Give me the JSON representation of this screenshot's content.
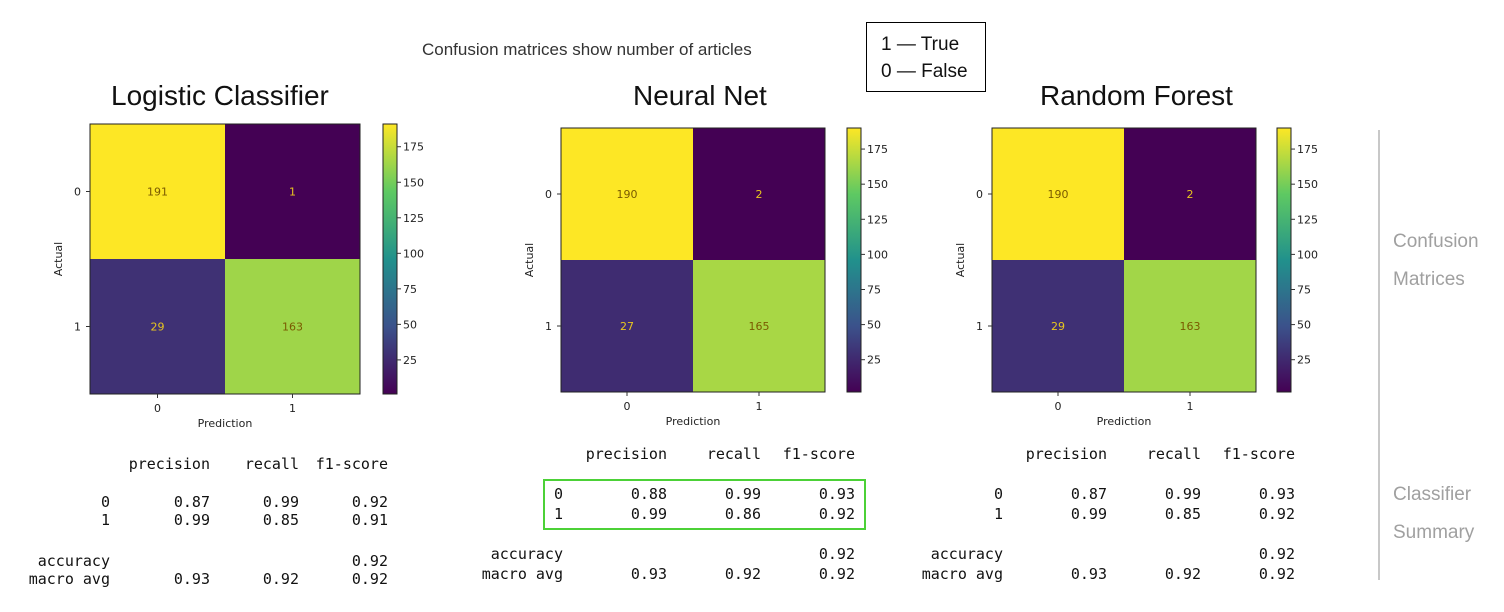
{
  "header": {
    "subtitle": "Confusion matrices show number of articles",
    "legend": [
      "1 — True",
      "0 — False"
    ]
  },
  "side_labels": {
    "matrices": "Confusion Matrices",
    "summary": "Classifier Summary"
  },
  "colors": {
    "viridis_low": "#440154",
    "viridis_high": "#fde725",
    "highlight": "#4cd137"
  },
  "chart_data": [
    {
      "type": "heatmap",
      "title": "Logistic Classifier",
      "xlabel": "Prediction",
      "ylabel": "Actual",
      "x_categories": [
        "0",
        "1"
      ],
      "y_categories": [
        "0",
        "1"
      ],
      "values": [
        [
          191,
          1
        ],
        [
          29,
          163
        ]
      ],
      "colorbar": {
        "ticks": [
          "175",
          "150",
          "125",
          "100",
          "75",
          "50",
          "25"
        ],
        "tick_values": [
          175,
          150,
          125,
          100,
          75,
          50,
          25
        ],
        "range": [
          1,
          191
        ]
      },
      "report": {
        "headers": [
          "precision",
          "recall",
          "f1-score"
        ],
        "rows": [
          {
            "label": "0",
            "values": [
              "0.87",
              "0.99",
              "0.92"
            ]
          },
          {
            "label": "1",
            "values": [
              "0.99",
              "0.85",
              "0.91"
            ]
          },
          {
            "label": "accuracy",
            "values": [
              "",
              "",
              "0.92"
            ]
          },
          {
            "label": "macro avg",
            "values": [
              "0.93",
              "0.92",
              "0.92"
            ]
          }
        ]
      }
    },
    {
      "type": "heatmap",
      "title": "Neural Net",
      "xlabel": "Prediction",
      "ylabel": "Actual",
      "x_categories": [
        "0",
        "1"
      ],
      "y_categories": [
        "0",
        "1"
      ],
      "values": [
        [
          190,
          2
        ],
        [
          27,
          165
        ]
      ],
      "colorbar": {
        "ticks": [
          "175",
          "150",
          "125",
          "100",
          "75",
          "50",
          "25"
        ],
        "tick_values": [
          175,
          150,
          125,
          100,
          75,
          50,
          25
        ],
        "range": [
          2,
          190
        ]
      },
      "report": {
        "headers": [
          "precision",
          "recall",
          "f1-score"
        ],
        "rows": [
          {
            "label": "0",
            "values": [
              "0.88",
              "0.99",
              "0.93"
            ]
          },
          {
            "label": "1",
            "values": [
              "0.99",
              "0.86",
              "0.92"
            ]
          },
          {
            "label": "accuracy",
            "values": [
              "",
              "",
              "0.92"
            ]
          },
          {
            "label": "macro avg",
            "values": [
              "0.93",
              "0.92",
              "0.92"
            ]
          }
        ],
        "highlighted": true
      }
    },
    {
      "type": "heatmap",
      "title": "Random Forest",
      "xlabel": "Prediction",
      "ylabel": "Actual",
      "x_categories": [
        "0",
        "1"
      ],
      "y_categories": [
        "0",
        "1"
      ],
      "values": [
        [
          190,
          2
        ],
        [
          29,
          163
        ]
      ],
      "colorbar": {
        "ticks": [
          "175",
          "150",
          "125",
          "100",
          "75",
          "50",
          "25"
        ],
        "tick_values": [
          175,
          150,
          125,
          100,
          75,
          50,
          25
        ],
        "range": [
          2,
          190
        ]
      },
      "report": {
        "headers": [
          "precision",
          "recall",
          "f1-score"
        ],
        "rows": [
          {
            "label": "0",
            "values": [
              "0.87",
              "0.99",
              "0.93"
            ]
          },
          {
            "label": "1",
            "values": [
              "0.99",
              "0.85",
              "0.92"
            ]
          },
          {
            "label": "accuracy",
            "values": [
              "",
              "",
              "0.92"
            ]
          },
          {
            "label": "macro avg",
            "values": [
              "0.93",
              "0.92",
              "0.92"
            ]
          }
        ]
      }
    }
  ]
}
